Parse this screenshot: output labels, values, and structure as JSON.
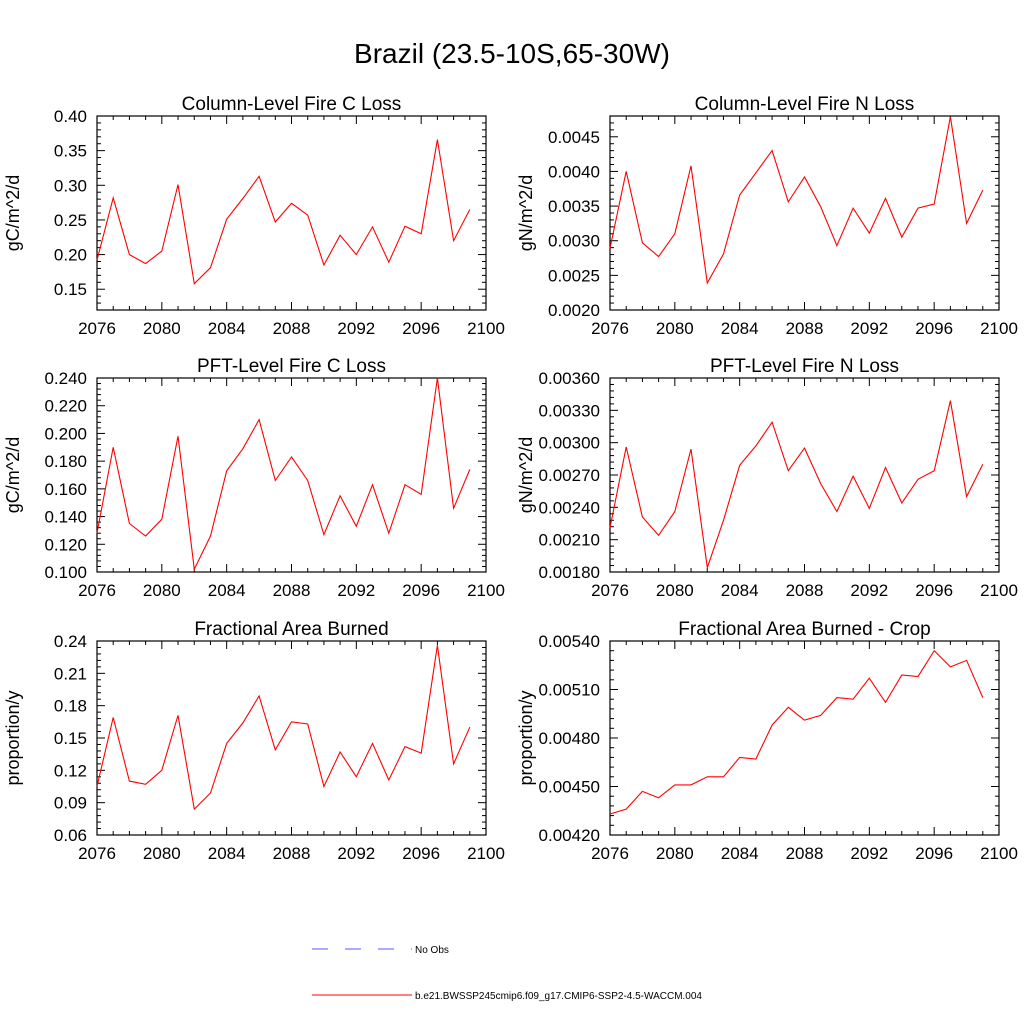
{
  "figure": {
    "title": "Brazil (23.5-10S,65-30W)"
  },
  "legend": {
    "items": [
      {
        "label": "No Obs",
        "color": "#5555ff",
        "style": "dashed"
      },
      {
        "label": "b.e21.BWSSP245cmip6.f09_g17.CMIP6-SSP2-4.5-WACCM.004",
        "color": "#ff0000",
        "style": "solid"
      }
    ]
  },
  "chart_data": [
    {
      "type": "line",
      "title": "Column-Level Fire C Loss",
      "xlabel": "",
      "ylabel": "gC/m^2/d",
      "xlim": [
        2076,
        2100
      ],
      "ylim": [
        0.12,
        0.4
      ],
      "xticks": [
        "2076",
        "2080",
        "2084",
        "2088",
        "2092",
        "2096",
        "2100"
      ],
      "yticks": [
        "0.15",
        "0.20",
        "0.25",
        "0.30",
        "0.35",
        "0.40"
      ],
      "x": [
        2076,
        2077,
        2078,
        2079,
        2080,
        2081,
        2082,
        2083,
        2084,
        2085,
        2086,
        2087,
        2088,
        2089,
        2090,
        2091,
        2092,
        2093,
        2094,
        2095,
        2096,
        2097,
        2098,
        2099
      ],
      "series": [
        {
          "color": "#ff0000",
          "values": [
            0.192,
            0.282,
            0.2,
            0.187,
            0.205,
            0.301,
            0.158,
            0.181,
            0.251,
            0.281,
            0.313,
            0.247,
            0.274,
            0.257,
            0.185,
            0.228,
            0.2,
            0.24,
            0.189,
            0.241,
            0.23,
            0.366,
            0.22,
            0.265
          ]
        }
      ]
    },
    {
      "type": "line",
      "title": "Column-Level Fire N Loss",
      "xlabel": "",
      "ylabel": "gN/m^2/d",
      "xlim": [
        2076,
        2100
      ],
      "ylim": [
        0.002,
        0.0048
      ],
      "xticks": [
        "2076",
        "2080",
        "2084",
        "2088",
        "2092",
        "2096",
        "2100"
      ],
      "yticks": [
        "0.0020",
        "0.0025",
        "0.0030",
        "0.0035",
        "0.0040",
        "0.0045"
      ],
      "x": [
        2076,
        2077,
        2078,
        2079,
        2080,
        2081,
        2082,
        2083,
        2084,
        2085,
        2086,
        2087,
        2088,
        2089,
        2090,
        2091,
        2092,
        2093,
        2094,
        2095,
        2096,
        2097,
        2098,
        2099
      ],
      "series": [
        {
          "color": "#ff0000",
          "values": [
            0.00289,
            0.004,
            0.00297,
            0.00277,
            0.0031,
            0.00408,
            0.00239,
            0.00281,
            0.00366,
            0.00398,
            0.0043,
            0.00356,
            0.00392,
            0.00349,
            0.00293,
            0.00347,
            0.00311,
            0.00361,
            0.00305,
            0.00347,
            0.00353,
            0.00479,
            0.00325,
            0.00373
          ]
        }
      ]
    },
    {
      "type": "line",
      "title": "PFT-Level Fire C Loss",
      "xlabel": "",
      "ylabel": "gC/m^2/d",
      "xlim": [
        2076,
        2100
      ],
      "ylim": [
        0.1,
        0.24
      ],
      "xticks": [
        "2076",
        "2080",
        "2084",
        "2088",
        "2092",
        "2096",
        "2100"
      ],
      "yticks": [
        "0.100",
        "0.120",
        "0.140",
        "0.160",
        "0.180",
        "0.200",
        "0.220",
        "0.240"
      ],
      "x": [
        2076,
        2077,
        2078,
        2079,
        2080,
        2081,
        2082,
        2083,
        2084,
        2085,
        2086,
        2087,
        2088,
        2089,
        2090,
        2091,
        2092,
        2093,
        2094,
        2095,
        2096,
        2097,
        2098,
        2099
      ],
      "series": [
        {
          "color": "#ff0000",
          "values": [
            0.128,
            0.19,
            0.135,
            0.126,
            0.138,
            0.198,
            0.102,
            0.126,
            0.173,
            0.189,
            0.21,
            0.166,
            0.183,
            0.166,
            0.127,
            0.155,
            0.133,
            0.163,
            0.128,
            0.163,
            0.156,
            0.24,
            0.146,
            0.174
          ]
        }
      ]
    },
    {
      "type": "line",
      "title": "PFT-Level Fire N Loss",
      "xlabel": "",
      "ylabel": "gN/m^2/d",
      "xlim": [
        2076,
        2100
      ],
      "ylim": [
        0.0018,
        0.0036
      ],
      "xticks": [
        "2076",
        "2080",
        "2084",
        "2088",
        "2092",
        "2096",
        "2100"
      ],
      "yticks": [
        "0.00180",
        "0.00210",
        "0.00240",
        "0.00270",
        "0.00300",
        "0.00330",
        "0.00360"
      ],
      "x": [
        2076,
        2077,
        2078,
        2079,
        2080,
        2081,
        2082,
        2083,
        2084,
        2085,
        2086,
        2087,
        2088,
        2089,
        2090,
        2091,
        2092,
        2093,
        2094,
        2095,
        2096,
        2097,
        2098,
        2099
      ],
      "series": [
        {
          "color": "#ff0000",
          "values": [
            0.00221,
            0.00296,
            0.00231,
            0.00214,
            0.00236,
            0.00294,
            0.00184,
            0.00228,
            0.00279,
            0.00297,
            0.00319,
            0.00274,
            0.00295,
            0.00262,
            0.00236,
            0.00269,
            0.00239,
            0.00277,
            0.00244,
            0.00266,
            0.00274,
            0.00339,
            0.0025,
            0.0028
          ]
        }
      ]
    },
    {
      "type": "line",
      "title": "Fractional Area Burned",
      "xlabel": "",
      "ylabel": "proportion/y",
      "xlim": [
        2076,
        2100
      ],
      "ylim": [
        0.06,
        0.24
      ],
      "xticks": [
        "2076",
        "2080",
        "2084",
        "2088",
        "2092",
        "2096",
        "2100"
      ],
      "yticks": [
        "0.06",
        "0.09",
        "0.12",
        "0.15",
        "0.18",
        "0.21",
        "0.24"
      ],
      "x": [
        2076,
        2077,
        2078,
        2079,
        2080,
        2081,
        2082,
        2083,
        2084,
        2085,
        2086,
        2087,
        2088,
        2089,
        2090,
        2091,
        2092,
        2093,
        2094,
        2095,
        2096,
        2097,
        2098,
        2099
      ],
      "series": [
        {
          "color": "#ff0000",
          "values": [
            0.105,
            0.169,
            0.11,
            0.107,
            0.12,
            0.171,
            0.084,
            0.099,
            0.145,
            0.164,
            0.189,
            0.139,
            0.165,
            0.163,
            0.105,
            0.137,
            0.114,
            0.145,
            0.111,
            0.142,
            0.136,
            0.236,
            0.126,
            0.16
          ]
        }
      ]
    },
    {
      "type": "line",
      "title": "Fractional Area Burned - Crop",
      "xlabel": "",
      "ylabel": "proportion/y",
      "xlim": [
        2076,
        2100
      ],
      "ylim": [
        0.0042,
        0.0054
      ],
      "xticks": [
        "2076",
        "2080",
        "2084",
        "2088",
        "2092",
        "2096",
        "2100"
      ],
      "yticks": [
        "0.00420",
        "0.00450",
        "0.00480",
        "0.00510",
        "0.00540"
      ],
      "x": [
        2076,
        2077,
        2078,
        2079,
        2080,
        2081,
        2082,
        2083,
        2084,
        2085,
        2086,
        2087,
        2088,
        2089,
        2090,
        2091,
        2092,
        2093,
        2094,
        2095,
        2096,
        2097,
        2098,
        2099
      ],
      "series": [
        {
          "color": "#ff0000",
          "values": [
            0.00433,
            0.00436,
            0.00447,
            0.00443,
            0.00451,
            0.00451,
            0.00456,
            0.00456,
            0.00468,
            0.00467,
            0.00488,
            0.00499,
            0.00491,
            0.00494,
            0.00505,
            0.00504,
            0.00517,
            0.00502,
            0.00519,
            0.00518,
            0.00534,
            0.00524,
            0.00528,
            0.00505
          ]
        }
      ]
    }
  ]
}
